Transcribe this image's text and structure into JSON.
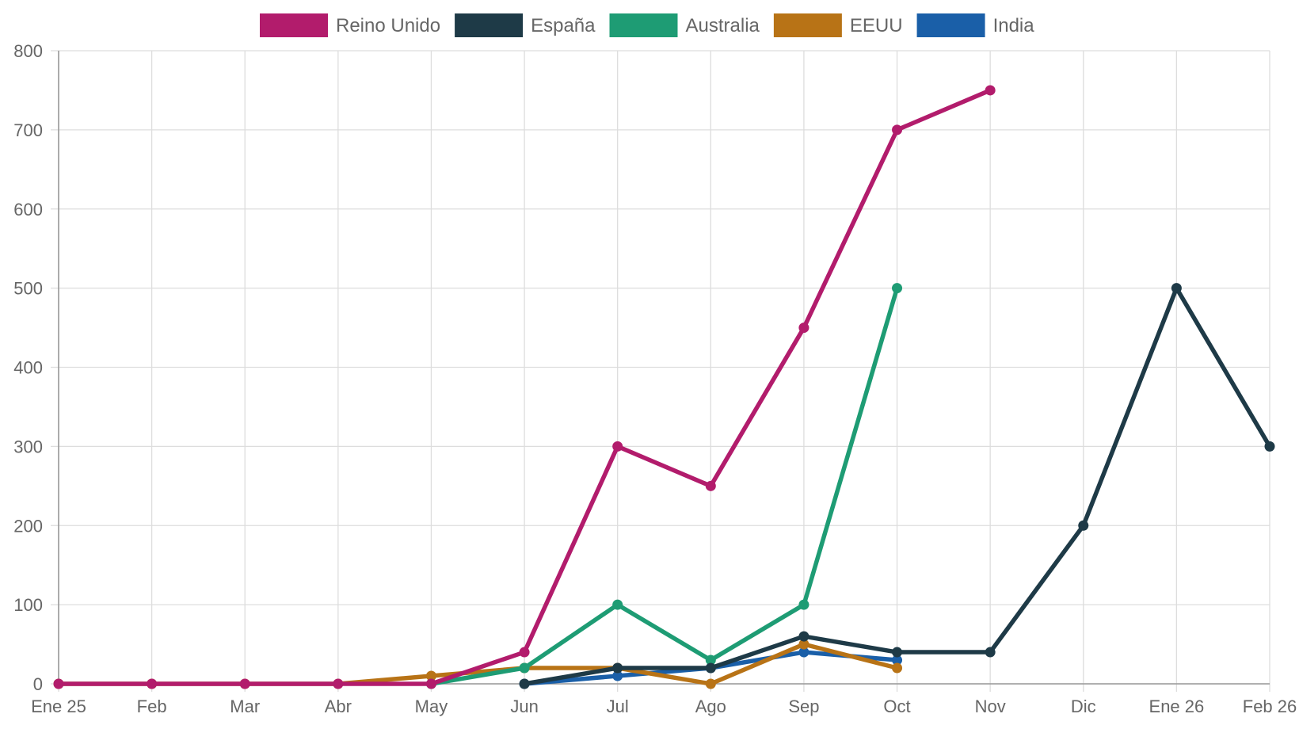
{
  "chart_data": {
    "type": "line",
    "categories": [
      "Ene 25",
      "Feb",
      "Mar",
      "Abr",
      "May",
      "Jun",
      "Jul",
      "Ago",
      "Sep",
      "Oct",
      "Nov",
      "Dic",
      "Ene 26",
      "Feb 26"
    ],
    "ylim": [
      0,
      800
    ],
    "yticks": [
      0,
      100,
      200,
      300,
      400,
      500,
      600,
      700,
      800
    ],
    "grid": true,
    "legend_position": "top",
    "series": [
      {
        "name": "India",
        "color": "#1a5fa8",
        "values": [
          null,
          null,
          null,
          null,
          null,
          0,
          10,
          20,
          40,
          30,
          null,
          null,
          null,
          null
        ]
      },
      {
        "name": "EEUU",
        "color": "#b87316",
        "values": [
          0,
          0,
          0,
          0,
          10,
          20,
          20,
          0,
          50,
          20,
          null,
          null,
          null,
          null
        ]
      },
      {
        "name": "Australia",
        "color": "#1e9c74",
        "values": [
          null,
          null,
          null,
          null,
          0,
          20,
          100,
          30,
          100,
          500,
          null,
          null,
          null,
          null
        ]
      },
      {
        "name": "España",
        "color": "#1e3a47",
        "values": [
          null,
          null,
          null,
          null,
          null,
          0,
          20,
          20,
          60,
          40,
          40,
          200,
          500,
          300
        ]
      },
      {
        "name": "Reino Unido",
        "color": "#b21c6c",
        "values": [
          0,
          0,
          0,
          0,
          0,
          40,
          300,
          250,
          450,
          700,
          750,
          null,
          null,
          null
        ]
      }
    ],
    "legend_order": [
      "Reino Unido",
      "España",
      "Australia",
      "EEUU",
      "India"
    ]
  }
}
